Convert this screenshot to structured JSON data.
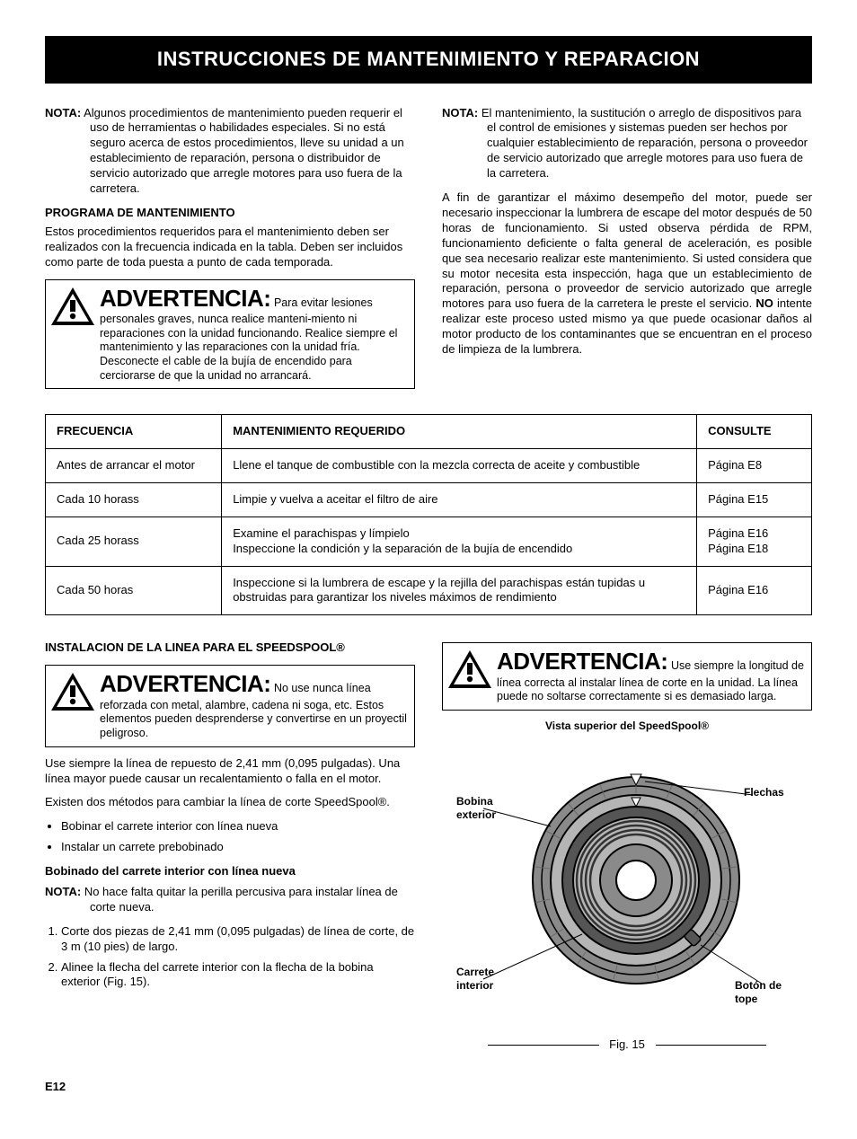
{
  "title_bar": "INSTRUCCIONES DE MANTENIMIENTO Y REPARACION",
  "nota_label": "NOTA:",
  "left_nota": "Algunos procedimientos de mantenimiento pueden requerir el uso de herramientas o habilidades especiales. Si no está seguro acerca de estos procedimientos, lleve su unidad a un establecimiento de reparación, persona o distribuidor de servicio autorizado que arregle motores para uso fuera de la carretera.",
  "programa_head": "PROGRAMA DE MANTENIMIENTO",
  "programa_text": "Estos procedimientos requeridos para el mantenimiento deben ser realizados con la frecuencia indicada en la tabla. Deben ser incluidos como parte de toda puesta a punto de cada temporada.",
  "warn_word": "ADVERTENCIA:",
  "warn1_text": "Para evitar lesiones personales graves, nunca realice manteni-miento ni reparaciones con la unidad funcionando. Realice siempre el mantenimiento y las reparaciones con la unidad fría. Desconecte el cable de la bujía de encendido para cerciorarse de que la unidad no arrancará.",
  "right_nota": "El mantenimiento, la sustitución o arreglo de dispositivos para el control de emisiones y sistemas pueden ser hechos por cualquier establecimiento de reparación, persona o proveedor de servicio autorizado que arregle motores para uso fuera de la carretera.",
  "right_para_pre": "A fin de garantizar el máximo desempeño del motor, puede ser necesario inspeccionar la lumbrera de escape del motor después de 50 horas de funcionamiento. Si usted observa pérdida de RPM, funcionamiento deficiente o falta general de aceleración, es posible que sea necesario realizar este mantenimiento. Si usted considera que su motor necesita esta inspección, haga que un establecimiento de reparación, persona o proveedor de servicio autorizado que arregle motores para uso fuera de la carretera le preste el servicio. ",
  "no_word": "NO",
  "right_para_post": " intente realizar este proceso usted mismo ya que puede ocasionar daños al motor producto de los contaminantes que se encuentran en el proceso de limpieza de la lumbrera.",
  "table": {
    "headers": [
      "FRECUENCIA",
      "MANTENIMIENTO REQUERIDO",
      "CONSULTE"
    ],
    "rows": [
      [
        "Antes de arrancar el motor",
        "Llene el tanque de combustible con la mezcla correcta de aceite y combustible",
        "Página E8"
      ],
      [
        "Cada 10 horass",
        "Limpie y vuelva a aceitar el filtro de aire",
        "Página E15"
      ],
      [
        "Cada 25 horass",
        "Examine el parachispas y límpielo\nInspeccione la condición y la separación de la bujía de encendido",
        "Página E16\nPágina E18"
      ],
      [
        "Cada 50 horas",
        "Inspeccione si la lumbrera de escape y la rejilla del parachispas están tupidas u obstruidas para garantizar los niveles máximos de rendimiento",
        "Página E16"
      ]
    ]
  },
  "install_head": "INSTALACION DE LA LINEA PARA EL SPEEDSPOOL®",
  "warn2_text": "No use nunca línea reforzada con metal, alambre, cadena ni soga, etc. Estos elementos pueden desprenderse y convertirse en un proyectil peligroso.",
  "use_line": "Use siempre la línea de repuesto de 2,41 mm (0,095 pulgadas). Una línea mayor puede causar un recalentamiento o falla en el motor.",
  "metodos": "Existen dos métodos para cambiar la línea de corte SpeedSpool®.",
  "bullet1": "Bobinar el carrete interior con línea nueva",
  "bullet2": "Instalar un carrete prebobinado",
  "bobinado_head": "Bobinado del carrete interior con línea nueva",
  "nota2": "No hace falta quitar la perilla percusiva para instalar línea de corte nueva.",
  "step1": "Corte dos piezas de 2,41 mm (0,095 pulgadas) de línea de corte, de 3 m (10 pies) de largo.",
  "step2": "Alinee la flecha del carrete interior con la flecha de la bobina exterior (Fig. 15).",
  "warn3_text": "Use siempre la longitud de línea correcta al instalar línea de corte en la unidad. La línea puede no soltarse correctamente si es demasiado larga.",
  "fig_caption": "Vista superior del SpeedSpool®",
  "labels": {
    "bobina": "Bobina exterior",
    "carrete": "Carrete interior",
    "flechas": "Flechas",
    "boton": "Botón de tope"
  },
  "fig_num": "Fig. 15",
  "page_num": "E12",
  "colors": {
    "black": "#000000",
    "white": "#ffffff",
    "gray_outer": "#8a8a8a",
    "gray_mid": "#b5b5b5",
    "gray_dark": "#555555"
  }
}
